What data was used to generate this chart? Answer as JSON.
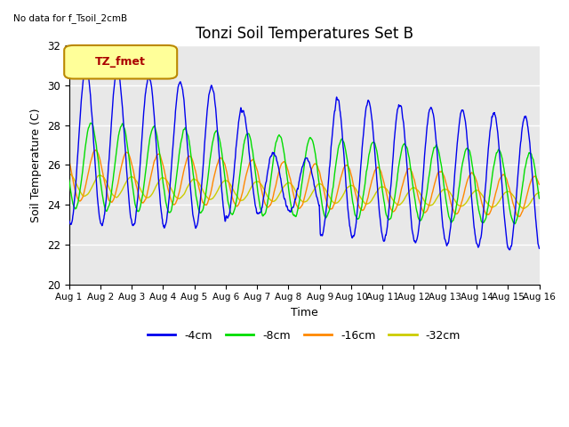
{
  "title": "Tonzi Soil Temperatures Set B",
  "xlabel": "Time",
  "ylabel": "Soil Temperature (C)",
  "no_data_text": "No data for f_Tsoil_2cmB",
  "legend_label_text": "TZ_fmet",
  "ylim": [
    20,
    32
  ],
  "xlim": [
    0,
    15
  ],
  "xtick_labels": [
    "Aug 1",
    "Aug 2",
    "Aug 3",
    "Aug 4",
    "Aug 5",
    "Aug 6",
    "Aug 7",
    "Aug 8",
    "Aug 9",
    "Aug 10",
    "Aug 11",
    "Aug 12",
    "Aug 13",
    "Aug 14",
    "Aug 15",
    "Aug 16"
  ],
  "ytick_values": [
    20,
    22,
    24,
    26,
    28,
    30,
    32
  ],
  "colors": {
    "blue": "#0000EE",
    "green": "#00DD00",
    "orange": "#FF8800",
    "yellow": "#CCCC00",
    "bg": "#E8E8E8",
    "legend_box_fill": "#FFFF99",
    "legend_box_edge": "#BB8800",
    "legend_text": "#AA0000"
  },
  "legend_entries": [
    "-4cm",
    "-8cm",
    "-16cm",
    "-32cm"
  ],
  "num_days": 15,
  "points_per_day": 96
}
